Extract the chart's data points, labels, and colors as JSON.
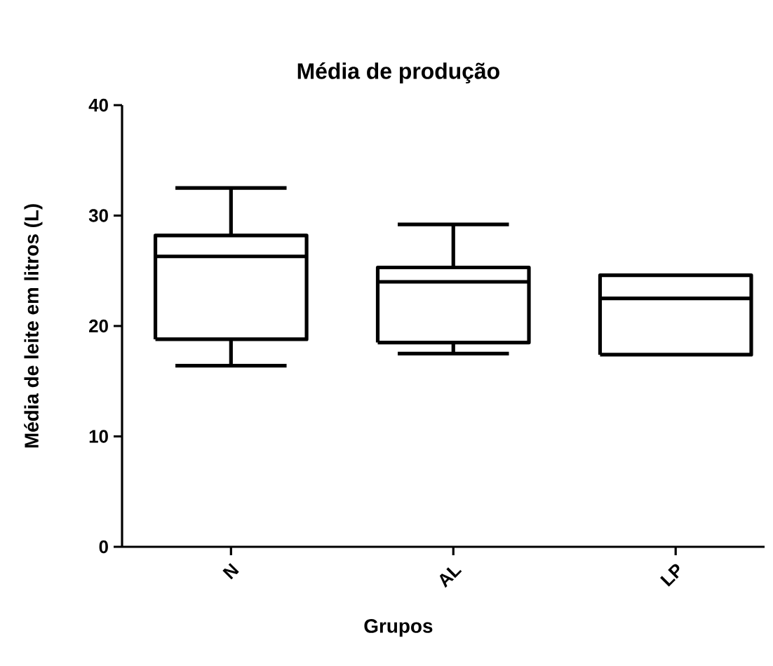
{
  "chart_data": {
    "type": "box",
    "title": "Média de produção",
    "xlabel": "Grupos",
    "ylabel": "Média de leite em litros (L)",
    "categories": [
      "N",
      "AL",
      "LP"
    ],
    "boxes": [
      {
        "low": 16.4,
        "q1": 18.8,
        "median": 26.3,
        "q3": 28.2,
        "high": 32.5
      },
      {
        "low": 17.5,
        "q1": 18.5,
        "median": 24.0,
        "q3": 25.3,
        "high": 29.2
      },
      {
        "low": 17.4,
        "q1": 17.4,
        "median": 22.5,
        "q3": 24.6,
        "high": 24.6
      }
    ],
    "color": "#000000",
    "ylim": [
      0,
      40
    ],
    "yticks": [
      0,
      10,
      20,
      30,
      40
    ],
    "grid": false
  }
}
